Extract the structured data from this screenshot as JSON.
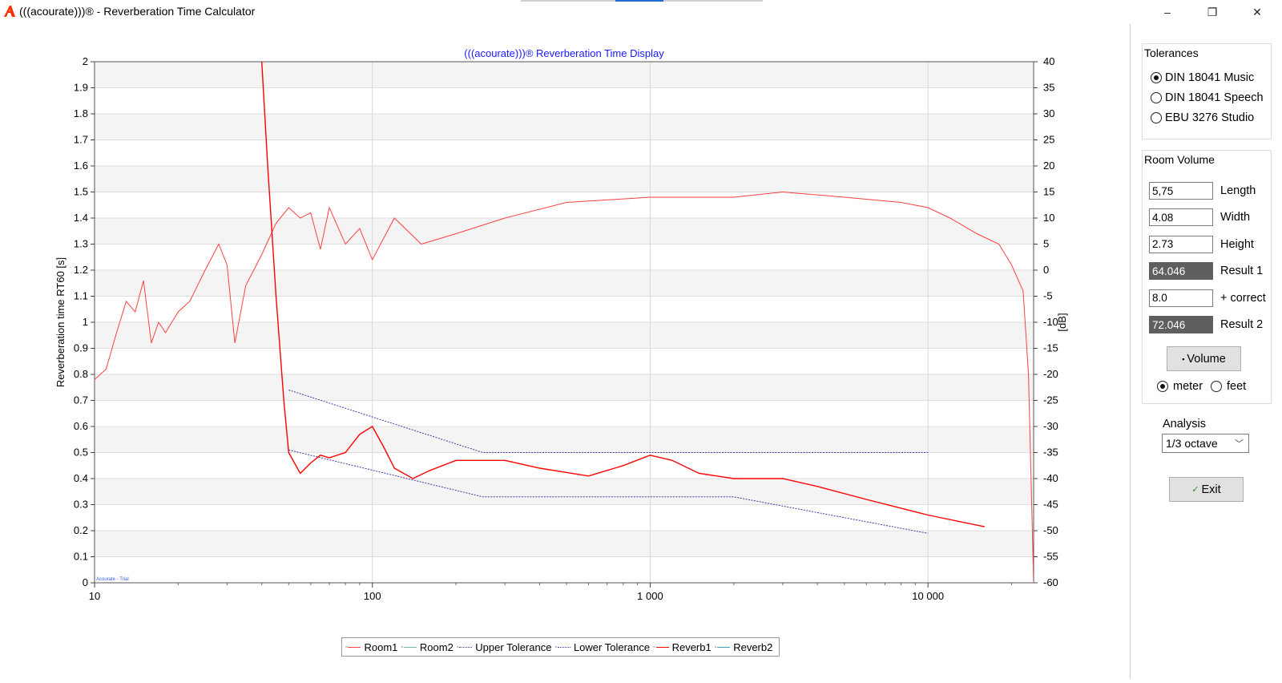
{
  "window": {
    "title": "(((acourate)))® - Reverberation Time Calculator",
    "buttons": {
      "minimize": "–",
      "restore": "❐",
      "close": "✕"
    }
  },
  "chart_data": {
    "type": "line",
    "title": "(((acourate)))® Reverberation Time Display",
    "xlabel": "",
    "ylabel": "Reverberation time RT60 [s]",
    "y2label": "[dB]",
    "x_scale": "log",
    "xlim": [
      10,
      24000
    ],
    "ylim": [
      0,
      2
    ],
    "y2lim": [
      -60,
      40
    ],
    "x_ticks": [
      "10",
      "100",
      "1 000",
      "10 000"
    ],
    "y_ticks": [
      "0",
      "0.1",
      "0.2",
      "0.3",
      "0.4",
      "0.5",
      "0.6",
      "0.7",
      "0.8",
      "0.9",
      "1",
      "1.1",
      "1.2",
      "1.3",
      "1.4",
      "1.5",
      "1.6",
      "1.7",
      "1.8",
      "1.9",
      "2"
    ],
    "y2_ticks": [
      "-60",
      "-55",
      "-50",
      "-45",
      "-40",
      "-35",
      "-30",
      "-25",
      "-20",
      "-15",
      "-10",
      "-5",
      "0",
      "5",
      "10",
      "15",
      "20",
      "25",
      "30",
      "35",
      "40"
    ],
    "watermark": "Acourate - Trial",
    "grid": true,
    "legend_position": "bottom",
    "series": [
      {
        "name": "Room1",
        "axis": "right",
        "color": "#ff4040",
        "x": [
          10,
          11,
          12,
          13,
          14,
          15,
          16,
          17,
          18,
          20,
          22,
          25,
          28,
          30,
          32,
          35,
          40,
          45,
          50,
          55,
          60,
          65,
          70,
          80,
          90,
          100,
          120,
          150,
          200,
          300,
          500,
          1000,
          2000,
          3000,
          5000,
          8000,
          10000,
          12000,
          15000,
          18000,
          20000,
          22000,
          23000,
          24000
        ],
        "y": [
          -21,
          -19,
          -12,
          -6,
          -8,
          -2,
          -14,
          -10,
          -12,
          -8,
          -6,
          0,
          5,
          1,
          -14,
          -3,
          3,
          9,
          12,
          10,
          11,
          4,
          12,
          5,
          8,
          2,
          10,
          5,
          7,
          10,
          13,
          14,
          14,
          15,
          14,
          13,
          12,
          10,
          7,
          5,
          1,
          -4,
          -20,
          -60
        ]
      },
      {
        "name": "Room2",
        "axis": "right",
        "color": "#7fb2b2",
        "x": [],
        "y": []
      },
      {
        "name": "Upper Tolerance",
        "axis": "left",
        "color": "#3c3ca0",
        "dashed": true,
        "x": [
          50,
          250,
          10000
        ],
        "y": [
          0.74,
          0.5,
          0.5
        ]
      },
      {
        "name": "Lower Tolerance",
        "axis": "left",
        "color": "#3c3ca0",
        "dashed": true,
        "x": [
          50,
          250,
          2000,
          10000
        ],
        "y": [
          0.51,
          0.33,
          0.33,
          0.19
        ]
      },
      {
        "name": "Reverb1",
        "axis": "left",
        "color": "#ff0000",
        "x": [
          40,
          42,
          45,
          48,
          50,
          55,
          60,
          65,
          70,
          80,
          90,
          100,
          110,
          120,
          140,
          160,
          200,
          250,
          300,
          400,
          600,
          800,
          1000,
          1200,
          1500,
          2000,
          2500,
          3000,
          4000,
          6000,
          10000,
          16000
        ],
        "y": [
          2.0,
          1.6,
          1.1,
          0.7,
          0.5,
          0.42,
          0.46,
          0.49,
          0.48,
          0.5,
          0.57,
          0.6,
          0.52,
          0.44,
          0.4,
          0.43,
          0.47,
          0.47,
          0.47,
          0.44,
          0.41,
          0.45,
          0.49,
          0.47,
          0.42,
          0.4,
          0.4,
          0.4,
          0.37,
          0.32,
          0.26,
          0.215
        ]
      },
      {
        "name": "Reverb2",
        "axis": "left",
        "color": "#3aa0b0",
        "x": [],
        "y": []
      }
    ]
  },
  "tolerances": {
    "title": "Tolerances",
    "options": [
      {
        "label": "DIN 18041 Music",
        "selected": true
      },
      {
        "label": "DIN 18041 Speech",
        "selected": false
      },
      {
        "label": "EBU 3276 Studio",
        "selected": false
      }
    ]
  },
  "room_volume": {
    "title": "Room Volume",
    "fields": [
      {
        "value": "5,75",
        "label": "Length"
      },
      {
        "value": "4.08",
        "label": "Width"
      },
      {
        "value": "2.73",
        "label": "Height"
      },
      {
        "value": "64.046",
        "label": "Result 1",
        "readonly": true
      },
      {
        "value": "8.0",
        "label": "+ correct"
      },
      {
        "value": "72.046",
        "label": "Result 2",
        "readonly": true
      }
    ],
    "volume_button": "Volume",
    "units": [
      {
        "label": "meter",
        "selected": true
      },
      {
        "label": "feet",
        "selected": false
      }
    ]
  },
  "analysis": {
    "label": "Analysis",
    "selected": "1/3 octave"
  },
  "exit_button": "Exit"
}
